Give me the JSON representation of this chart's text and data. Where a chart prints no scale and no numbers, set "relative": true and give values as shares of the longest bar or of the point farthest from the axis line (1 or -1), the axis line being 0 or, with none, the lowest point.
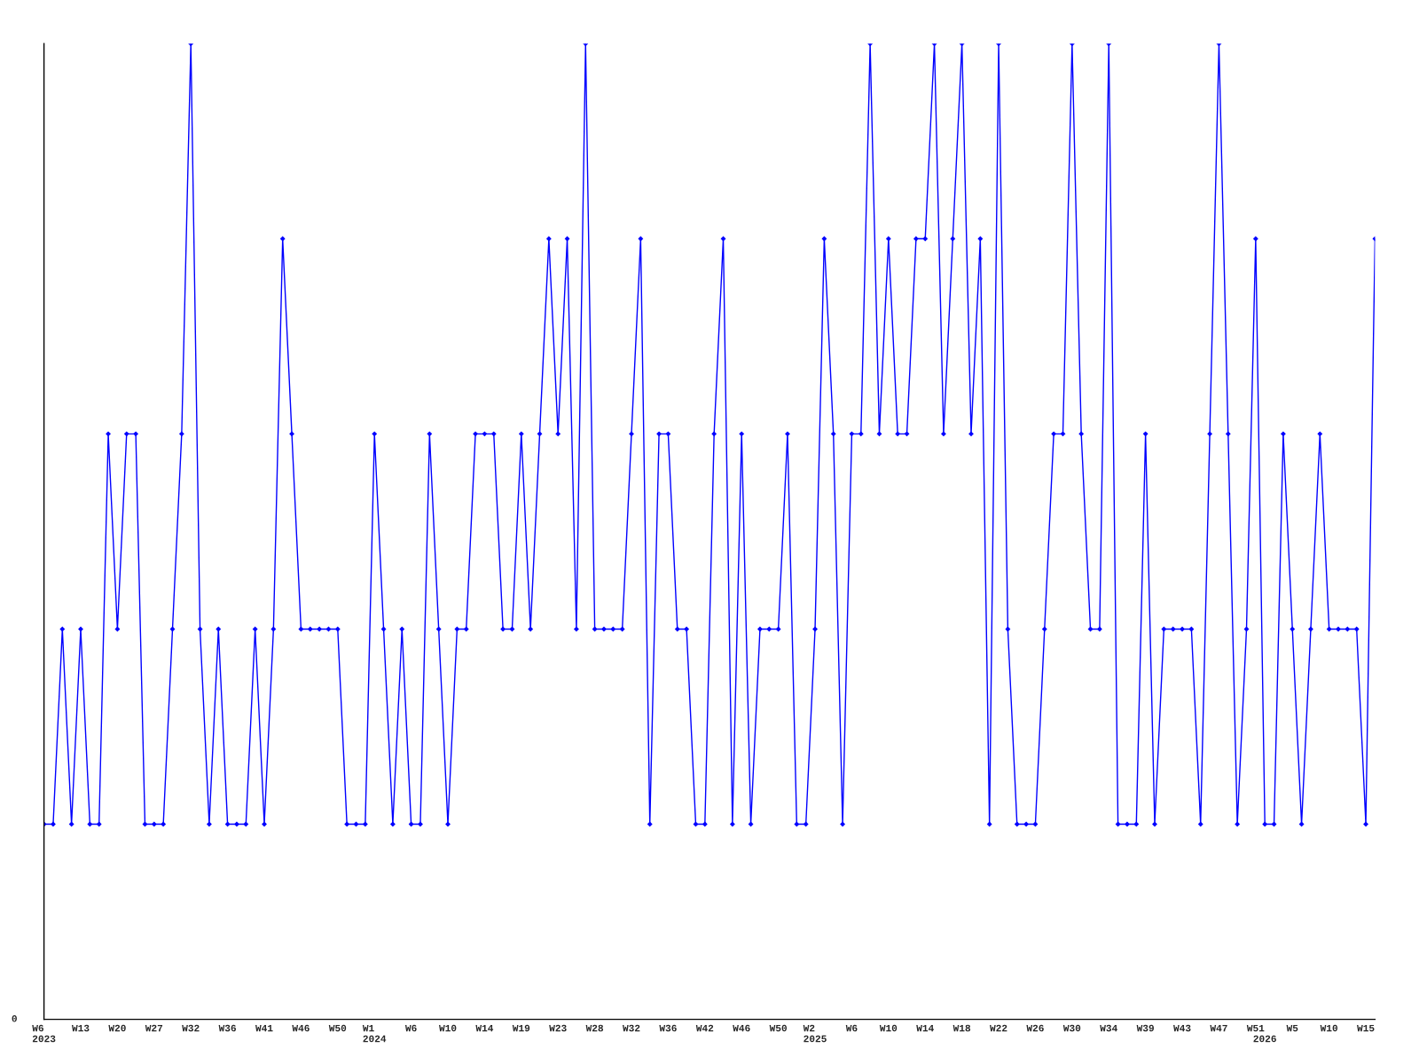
{
  "chart_data": {
    "type": "line",
    "relative": true,
    "marker": "diamond",
    "line_style": "solid",
    "grid": false,
    "annotations": [
      "0"
    ],
    "categories": [
      "W6\n2023",
      null,
      null,
      null,
      "W13",
      null,
      null,
      null,
      "W20",
      null,
      null,
      null,
      "W27",
      null,
      null,
      null,
      "W32",
      null,
      null,
      null,
      "W36",
      null,
      null,
      null,
      "W41",
      null,
      null,
      null,
      "W46",
      null,
      null,
      null,
      "W50",
      null,
      null,
      null,
      "W1\n2024",
      null,
      null,
      null,
      "W6",
      null,
      null,
      null,
      "W10",
      null,
      null,
      null,
      "W14",
      null,
      null,
      null,
      "W19",
      null,
      null,
      null,
      "W23",
      null,
      null,
      null,
      "W28",
      null,
      null,
      null,
      "W32",
      null,
      null,
      null,
      "W36",
      null,
      null,
      null,
      "W42",
      null,
      null,
      null,
      "W46",
      null,
      null,
      null,
      "W50",
      null,
      null,
      null,
      "W2\n2025",
      null,
      null,
      null,
      "W6",
      null,
      null,
      null,
      "W10",
      null,
      null,
      null,
      "W14",
      null,
      null,
      null,
      "W18",
      null,
      null,
      null,
      "W22",
      null,
      null,
      null,
      "W26",
      null,
      null,
      null,
      "W30",
      null,
      null,
      null,
      "W34",
      null,
      null,
      null,
      "W39",
      null,
      null,
      null,
      "W43",
      null,
      null,
      null,
      "W47",
      null,
      null,
      null,
      "W51",
      "\n2026",
      null,
      null,
      "W5",
      null,
      null,
      null,
      "W10",
      null,
      null,
      null,
      "W15",
      null
    ],
    "series": [
      {
        "color": "#0000ff",
        "values": [
          0.2,
          0.2,
          0.4,
          0.2,
          0.4,
          0.2,
          0.2,
          0.6,
          0.4,
          0.6,
          0.6,
          0.2,
          0.2,
          0.2,
          0.4,
          0.6,
          1.0,
          0.4,
          0.2,
          0.4,
          0.2,
          0.2,
          0.2,
          0.4,
          0.2,
          0.4,
          0.8,
          0.6,
          0.4,
          0.4,
          0.4,
          0.4,
          0.4,
          0.2,
          0.2,
          0.2,
          0.6,
          0.4,
          0.2,
          0.4,
          0.2,
          0.2,
          0.6,
          0.4,
          0.2,
          0.4,
          0.4,
          0.6,
          0.6,
          0.6,
          0.4,
          0.4,
          0.6,
          0.4,
          0.6,
          0.8,
          0.6,
          0.8,
          0.4,
          1.0,
          0.4,
          0.4,
          0.4,
          0.4,
          0.6,
          0.8,
          0.2,
          0.6,
          0.6,
          0.4,
          0.4,
          0.2,
          0.2,
          0.6,
          0.8,
          0.2,
          0.6,
          0.2,
          0.4,
          0.4,
          0.4,
          0.6,
          0.2,
          0.2,
          0.4,
          0.8,
          0.6,
          0.2,
          0.6,
          0.6,
          1.0,
          0.6,
          0.8,
          0.6,
          0.6,
          0.8,
          0.8,
          1.0,
          0.6,
          0.8,
          1.0,
          0.6,
          0.8,
          0.2,
          1.0,
          0.4,
          0.2,
          0.2,
          0.2,
          0.4,
          0.6,
          0.6,
          1.0,
          0.6,
          0.4,
          0.4,
          1.0,
          0.2,
          0.2,
          0.2,
          0.6,
          0.2,
          0.4,
          0.4,
          0.4,
          0.4,
          0.2,
          0.6,
          1.0,
          0.6,
          0.2,
          0.4,
          0.8,
          0.2,
          0.2,
          0.6,
          0.4,
          0.2,
          0.4,
          0.6,
          0.4,
          0.4,
          0.4,
          0.4,
          0.2,
          0.8
        ]
      }
    ]
  }
}
